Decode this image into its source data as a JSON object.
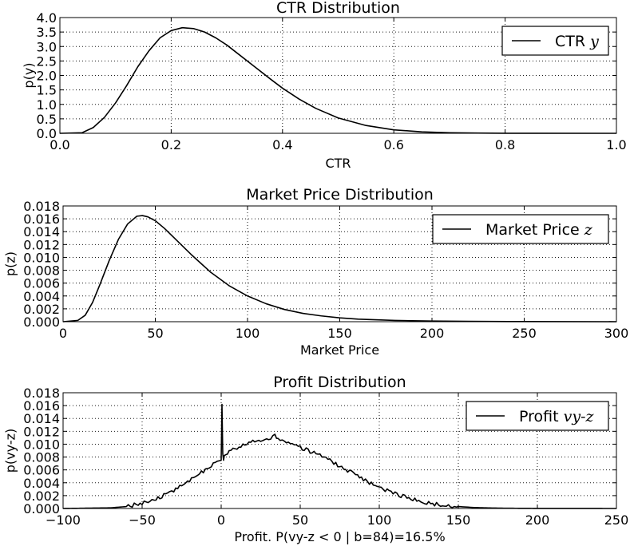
{
  "chart_data": [
    {
      "type": "line",
      "title": "CTR Distribution",
      "xlabel": "CTR",
      "ylabel": "p(y)",
      "xlim": [
        0.0,
        1.0
      ],
      "ylim": [
        0.0,
        4.0
      ],
      "grid": true,
      "legend_position": "top-right",
      "xticks": [
        "0.0",
        "0.2",
        "0.4",
        "0.6",
        "0.8",
        "1.0"
      ],
      "yticks": [
        "0.0",
        "0.5",
        "1.0",
        "1.5",
        "2.0",
        "2.5",
        "3.0",
        "3.5",
        "4.0"
      ],
      "series": [
        {
          "name": "CTR",
          "name_math": "y",
          "x": [
            0.0,
            0.04,
            0.06,
            0.08,
            0.1,
            0.12,
            0.14,
            0.16,
            0.18,
            0.2,
            0.22,
            0.24,
            0.26,
            0.28,
            0.3,
            0.32,
            0.35,
            0.38,
            0.4,
            0.43,
            0.46,
            0.5,
            0.55,
            0.6,
            0.65,
            0.7,
            0.75,
            0.8,
            0.85,
            1.0
          ],
          "y": [
            0.0,
            0.02,
            0.2,
            0.55,
            1.05,
            1.65,
            2.3,
            2.85,
            3.3,
            3.55,
            3.65,
            3.62,
            3.5,
            3.3,
            3.05,
            2.75,
            2.3,
            1.85,
            1.56,
            1.18,
            0.86,
            0.53,
            0.27,
            0.12,
            0.05,
            0.02,
            0.008,
            0.003,
            0.001,
            0.0
          ]
        }
      ]
    },
    {
      "type": "line",
      "title": "Market Price Distribution",
      "xlabel": "Market Price",
      "ylabel": "p(z)",
      "xlim": [
        0,
        300
      ],
      "ylim": [
        0.0,
        0.018
      ],
      "grid": true,
      "legend_position": "top-right",
      "xticks": [
        "0",
        "50",
        "100",
        "150",
        "200",
        "250",
        "300"
      ],
      "yticks": [
        "0.000",
        "0.002",
        "0.004",
        "0.006",
        "0.008",
        "0.010",
        "0.012",
        "0.014",
        "0.016",
        "0.018"
      ],
      "series": [
        {
          "name": "Market Price",
          "name_math": "z",
          "x": [
            0,
            8,
            12,
            16,
            20,
            25,
            30,
            35,
            40,
            43,
            46,
            50,
            55,
            60,
            70,
            80,
            90,
            100,
            110,
            120,
            130,
            140,
            150,
            160,
            180,
            200,
            220,
            250,
            300
          ],
          "y": [
            0.0,
            0.0002,
            0.001,
            0.003,
            0.0058,
            0.0095,
            0.0128,
            0.0152,
            0.0164,
            0.0165,
            0.0163,
            0.0157,
            0.0145,
            0.0131,
            0.0103,
            0.0077,
            0.0056,
            0.004,
            0.0028,
            0.0019,
            0.0013,
            0.0009,
            0.0006,
            0.0004,
            0.0002,
            0.0001,
            5e-05,
            2e-05,
            0.0
          ]
        }
      ]
    },
    {
      "type": "line",
      "title": "Profit Distribution",
      "xlabel": "Profit. P(vy-z < 0 | b=84)=16.5%",
      "ylabel": "p(vy-z)",
      "xlim": [
        -100,
        250
      ],
      "ylim": [
        0.0,
        0.018
      ],
      "grid": true,
      "legend_position": "top-right",
      "xticks": [
        "−100",
        "−50",
        "0",
        "50",
        "100",
        "150",
        "200",
        "250"
      ],
      "yticks": [
        "0.000",
        "0.002",
        "0.004",
        "0.006",
        "0.008",
        "0.010",
        "0.012",
        "0.014",
        "0.016",
        "0.018"
      ],
      "series": [
        {
          "name": "Profit",
          "name_math": "vy-z",
          "x": [
            -100,
            -70,
            -60,
            -50,
            -40,
            -30,
            -20,
            -10,
            -5,
            0,
            0.5,
            1,
            1.5,
            2,
            5,
            10,
            20,
            30,
            34,
            36,
            40,
            50,
            60,
            70,
            80,
            90,
            100,
            110,
            120,
            130,
            140,
            150,
            160,
            170,
            180,
            200,
            250
          ],
          "y": [
            0.0,
            0.0001,
            0.0003,
            0.0008,
            0.0016,
            0.0028,
            0.0043,
            0.006,
            0.007,
            0.0075,
            0.0162,
            0.0085,
            0.0075,
            0.0082,
            0.0088,
            0.0095,
            0.0104,
            0.0108,
            0.0115,
            0.0108,
            0.0103,
            0.0095,
            0.0085,
            0.0073,
            0.0059,
            0.0045,
            0.0033,
            0.0023,
            0.0015,
            0.0009,
            0.0005,
            0.0003,
            0.00015,
            8e-05,
            4e-05,
            1e-05,
            0.0
          ]
        }
      ]
    }
  ]
}
